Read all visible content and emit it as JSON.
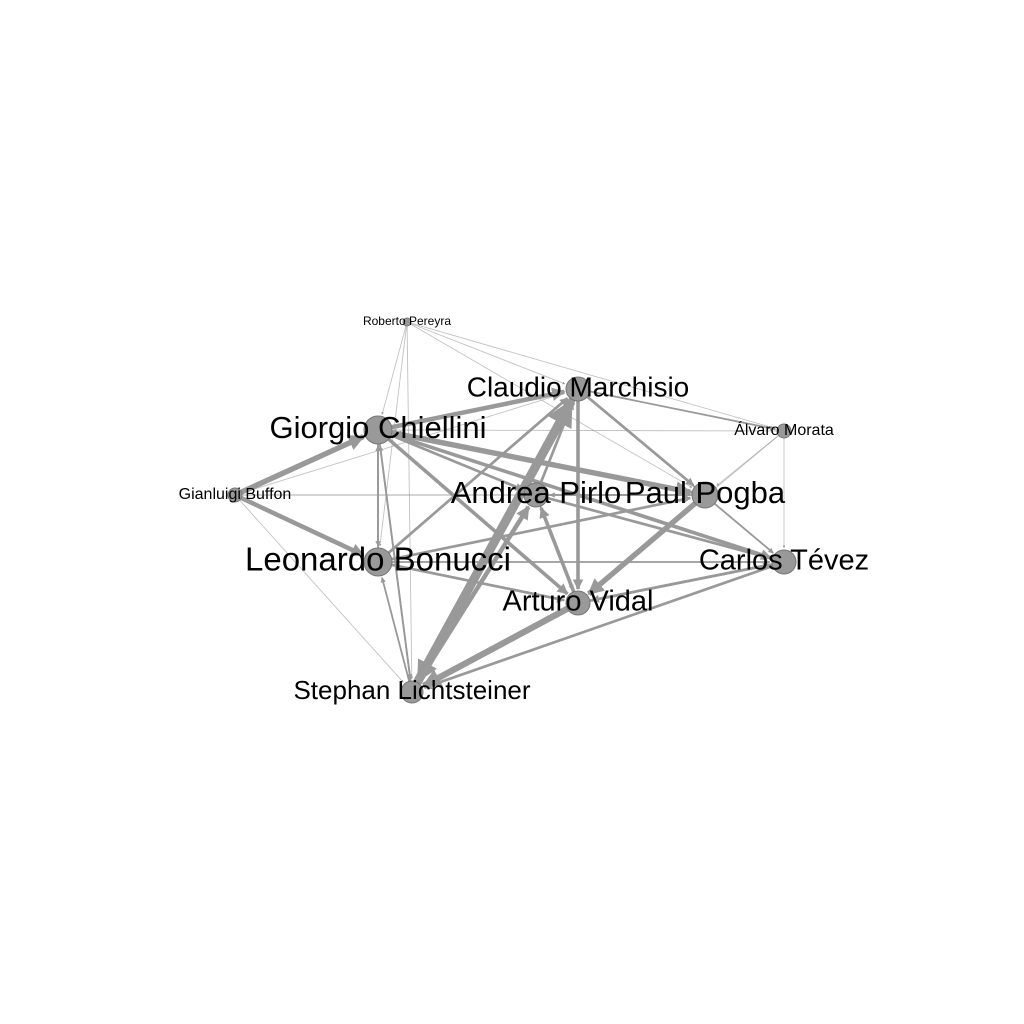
{
  "players": [
    {
      "id": "pereyra",
      "name": "Roberto Pereyra",
      "weight": 1
    },
    {
      "id": "marchisio",
      "name": "Claudio Marchisio",
      "weight": 3
    },
    {
      "id": "chiellini",
      "name": "Giorgio Chiellini",
      "weight": 4
    },
    {
      "id": "morata",
      "name": "Álvaro Morata",
      "weight": 1.5
    },
    {
      "id": "buffon",
      "name": "Gianluigi Buffon",
      "weight": 1.5
    },
    {
      "id": "pirlo",
      "name": "Andrea Pirlo",
      "weight": 3.5
    },
    {
      "id": "pogba",
      "name": "Paul Pogba",
      "weight": 3.5
    },
    {
      "id": "bonucci",
      "name": "Leonardo Bonucci",
      "weight": 4
    },
    {
      "id": "tevez",
      "name": "Carlos Tévez",
      "weight": 3
    },
    {
      "id": "vidal",
      "name": "Arturo Vidal",
      "weight": 3.5
    },
    {
      "id": "lichtsteiner",
      "name": "Stephan Lichtsteiner",
      "weight": 3
    }
  ],
  "passes": [
    {
      "from": "lichtsteiner",
      "to": "marchisio",
      "weight": 10
    },
    {
      "from": "marchisio",
      "to": "lichtsteiner",
      "weight": 8
    },
    {
      "from": "vidal",
      "to": "lichtsteiner",
      "weight": 7
    },
    {
      "from": "lichtsteiner",
      "to": "pirlo",
      "weight": 5
    },
    {
      "from": "buffon",
      "to": "chiellini",
      "weight": 6
    },
    {
      "from": "buffon",
      "to": "bonucci",
      "weight": 5
    },
    {
      "from": "chiellini",
      "to": "marchisio",
      "weight": 5
    },
    {
      "from": "chiellini",
      "to": "pogba",
      "weight": 6
    },
    {
      "from": "chiellini",
      "to": "tevez",
      "weight": 4
    },
    {
      "from": "chiellini",
      "to": "vidal",
      "weight": 4
    },
    {
      "from": "chiellini",
      "to": "pirlo",
      "weight": 3
    },
    {
      "from": "pogba",
      "to": "vidal",
      "weight": 6
    },
    {
      "from": "pogba",
      "to": "chiellini",
      "weight": 3
    },
    {
      "from": "pirlo",
      "to": "tevez",
      "weight": 3
    },
    {
      "from": "bonucci",
      "to": "pogba",
      "weight": 3
    },
    {
      "from": "bonucci",
      "to": "vidal",
      "weight": 3
    },
    {
      "from": "bonucci",
      "to": "marchisio",
      "weight": 3
    },
    {
      "from": "vidal",
      "to": "pirlo",
      "weight": 4
    },
    {
      "from": "marchisio",
      "to": "vidal",
      "weight": 4
    },
    {
      "from": "marchisio",
      "to": "pogba",
      "weight": 3
    },
    {
      "from": "tevez",
      "to": "lichtsteiner",
      "weight": 3
    },
    {
      "from": "tevez",
      "to": "vidal",
      "weight": 3
    },
    {
      "from": "pirlo",
      "to": "marchisio",
      "weight": 3
    },
    {
      "from": "bonucci",
      "to": "chiellini",
      "weight": 2
    },
    {
      "from": "lichtsteiner",
      "to": "bonucci",
      "weight": 2
    },
    {
      "from": "chiellini",
      "to": "lichtsteiner",
      "weight": 2
    },
    {
      "from": "pirlo",
      "to": "vidal",
      "weight": 2
    },
    {
      "from": "vidal",
      "to": "tevez",
      "weight": 3
    },
    {
      "from": "pogba",
      "to": "pirlo",
      "weight": 2
    },
    {
      "from": "bonucci",
      "to": "tevez",
      "weight": 2
    },
    {
      "from": "pereyra",
      "to": "marchisio",
      "weight": 1
    },
    {
      "from": "pereyra",
      "to": "chiellini",
      "weight": 1
    },
    {
      "from": "pereyra",
      "to": "bonucci",
      "weight": 1
    },
    {
      "from": "pereyra",
      "to": "lichtsteiner",
      "weight": 1
    },
    {
      "from": "pereyra",
      "to": "pogba",
      "weight": 1
    },
    {
      "from": "pereyra",
      "to": "morata",
      "weight": 1
    },
    {
      "from": "morata",
      "to": "marchisio",
      "weight": 1
    },
    {
      "from": "morata",
      "to": "tevez",
      "weight": 1
    },
    {
      "from": "morata",
      "to": "pogba",
      "weight": 1
    },
    {
      "from": "morata",
      "to": "chiellini",
      "weight": 1
    },
    {
      "from": "morata",
      "to": "vidal",
      "weight": 1
    },
    {
      "from": "buffon",
      "to": "lichtsteiner",
      "weight": 1
    },
    {
      "from": "buffon",
      "to": "pogba",
      "weight": 1
    },
    {
      "from": "buffon",
      "to": "pirlo",
      "weight": 1
    },
    {
      "from": "buffon",
      "to": "marchisio",
      "weight": 1
    },
    {
      "from": "marchisio",
      "to": "morata",
      "weight": 2
    },
    {
      "from": "marchisio",
      "to": "tevez",
      "weight": 2
    },
    {
      "from": "pirlo",
      "to": "pogba",
      "weight": 2
    },
    {
      "from": "chiellini",
      "to": "bonucci",
      "weight": 2
    },
    {
      "from": "lichtsteiner",
      "to": "chiellini",
      "weight": 2
    }
  ],
  "colors": {
    "edge": "#999999",
    "node": "#999999",
    "node_outline": "#777777",
    "label": "#000000"
  }
}
